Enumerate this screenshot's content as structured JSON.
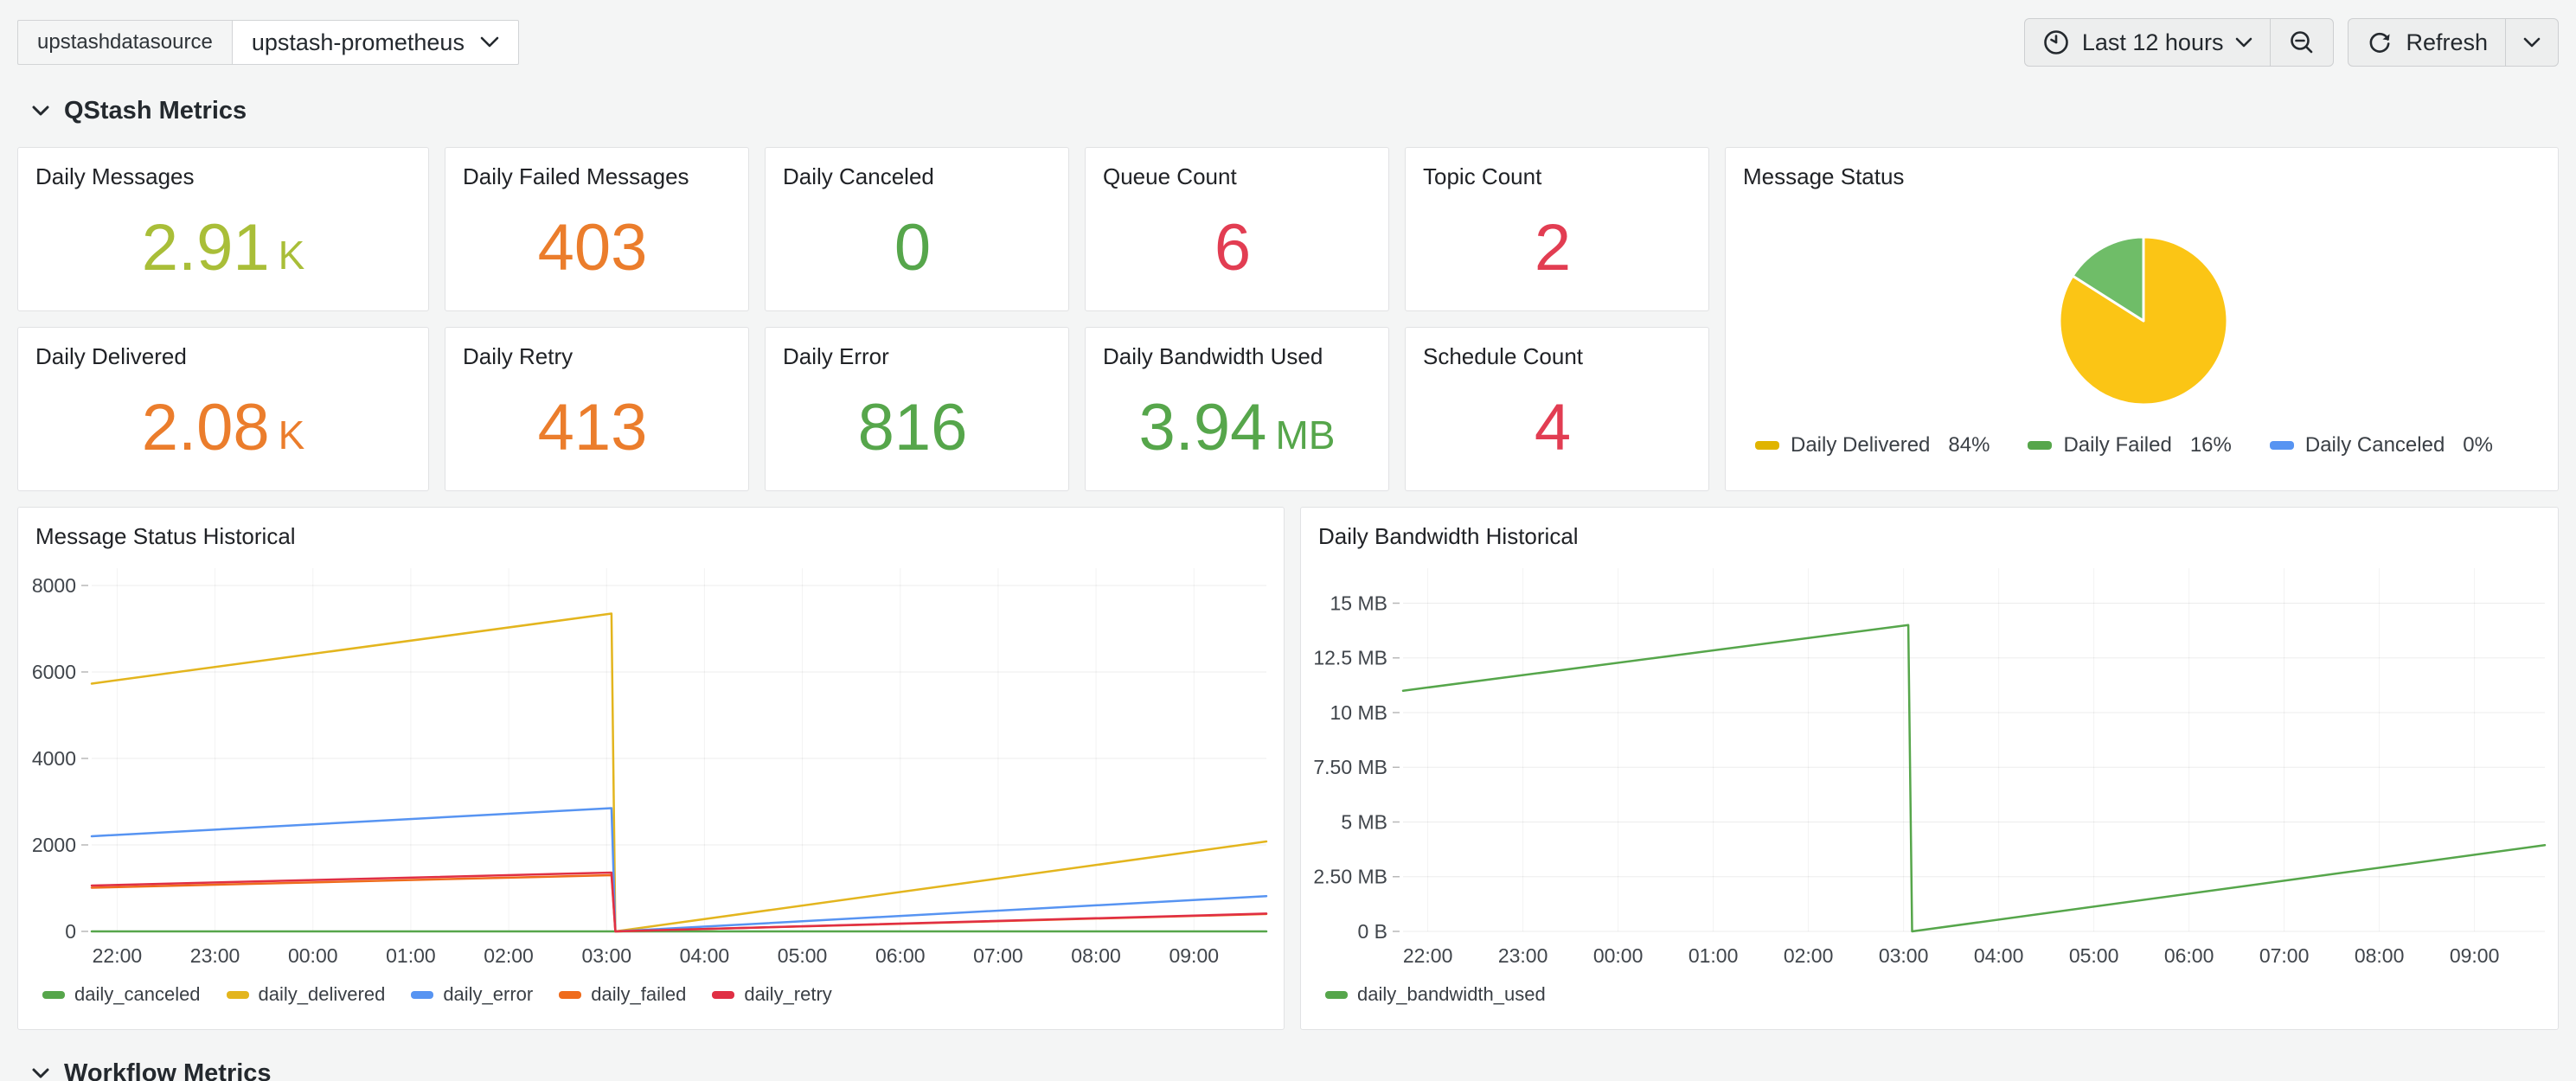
{
  "topbar": {
    "datasource_label": "upstashdatasource",
    "datasource_value": "upstash-prometheus",
    "time_range_label": "Last 12 hours",
    "refresh_label": "Refresh"
  },
  "sections": {
    "qstash_title": "QStash Metrics",
    "workflow_title": "Workflow Metrics"
  },
  "stat_panels": [
    {
      "title": "Daily Messages",
      "value": "2.91",
      "suffix": "K",
      "color": "#A9BE38"
    },
    {
      "title": "Daily Failed Messages",
      "value": "403",
      "suffix": "",
      "color": "#EB7D2C"
    },
    {
      "title": "Daily Canceled",
      "value": "0",
      "suffix": "",
      "color": "#56A64B"
    },
    {
      "title": "Queue Count",
      "value": "6",
      "suffix": "",
      "color": "#E23D52"
    },
    {
      "title": "Topic Count",
      "value": "2",
      "suffix": "",
      "color": "#E23D52"
    },
    {
      "title": "Daily Delivered",
      "value": "2.08",
      "suffix": "K",
      "color": "#EB7D2C"
    },
    {
      "title": "Daily Retry",
      "value": "413",
      "suffix": "",
      "color": "#EB7D2C"
    },
    {
      "title": "Daily Error",
      "value": "816",
      "suffix": "",
      "color": "#56A64B"
    },
    {
      "title": "Daily Bandwidth Used",
      "value": "3.94",
      "suffix": "MB",
      "color": "#56A64B"
    },
    {
      "title": "Schedule Count",
      "value": "4",
      "suffix": "",
      "color": "#E23D52"
    }
  ],
  "chart_data": [
    {
      "type": "pie",
      "title": "Message Status",
      "legend_position": "bottom",
      "slices": [
        {
          "label": "Daily Delivered",
          "pct": 84,
          "color": "#FBC515",
          "legend_color": "#E0B400"
        },
        {
          "label": "Daily Failed",
          "pct": 16,
          "color": "#6FBD68",
          "legend_color": "#56A64B"
        },
        {
          "label": "Daily Canceled",
          "pct": 0,
          "color": "#5794F2",
          "legend_color": "#5794F2"
        }
      ]
    },
    {
      "type": "line",
      "title": "Message Status Historical",
      "xlabel": "",
      "ylabel": "",
      "grid": true,
      "legend_position": "bottom",
      "ylim": [
        0,
        8400
      ],
      "xlim": [
        21.74,
        33.74
      ],
      "yticks": [
        {
          "v": 0,
          "label": "0"
        },
        {
          "v": 2000,
          "label": "2000"
        },
        {
          "v": 4000,
          "label": "4000"
        },
        {
          "v": 6000,
          "label": "6000"
        },
        {
          "v": 8000,
          "label": "8000"
        }
      ],
      "xticks": [
        {
          "v": 22,
          "label": "22:00"
        },
        {
          "v": 23,
          "label": "23:00"
        },
        {
          "v": 24,
          "label": "00:00"
        },
        {
          "v": 25,
          "label": "01:00"
        },
        {
          "v": 26,
          "label": "02:00"
        },
        {
          "v": 27,
          "label": "03:00"
        },
        {
          "v": 28,
          "label": "04:00"
        },
        {
          "v": 29,
          "label": "05:00"
        },
        {
          "v": 30,
          "label": "06:00"
        },
        {
          "v": 31,
          "label": "07:00"
        },
        {
          "v": 32,
          "label": "08:00"
        },
        {
          "v": 33,
          "label": "09:00"
        }
      ],
      "series": [
        {
          "name": "daily_canceled",
          "color": "#56A64B",
          "points": [
            [
              21.74,
              0
            ],
            [
              33.74,
              0
            ]
          ]
        },
        {
          "name": "daily_delivered",
          "color": "#E3B51E",
          "points": [
            [
              21.74,
              5730
            ],
            [
              27.05,
              7350
            ],
            [
              27.09,
              0
            ],
            [
              33.74,
              2080
            ]
          ]
        },
        {
          "name": "daily_error",
          "color": "#5794F2",
          "points": [
            [
              21.74,
              2200
            ],
            [
              27.05,
              2850
            ],
            [
              27.09,
              0
            ],
            [
              33.74,
              816
            ]
          ]
        },
        {
          "name": "daily_failed",
          "color": "#EF6B1C",
          "points": [
            [
              21.74,
              1010
            ],
            [
              27.05,
              1300
            ],
            [
              27.09,
              0
            ],
            [
              33.74,
              403
            ]
          ]
        },
        {
          "name": "daily_retry",
          "color": "#E02F44",
          "points": [
            [
              21.74,
              1060
            ],
            [
              27.05,
              1360
            ],
            [
              27.09,
              0
            ],
            [
              33.74,
              413
            ]
          ]
        }
      ]
    },
    {
      "type": "line",
      "title": "Daily Bandwidth Historical",
      "xlabel": "",
      "ylabel": "",
      "grid": true,
      "legend_position": "bottom",
      "ylim": [
        0,
        16.6
      ],
      "xlim": [
        21.74,
        33.74
      ],
      "yticks": [
        {
          "v": 0,
          "label": "0 B"
        },
        {
          "v": 2.5,
          "label": "2.50 MB"
        },
        {
          "v": 5,
          "label": "5 MB"
        },
        {
          "v": 7.5,
          "label": "7.50 MB"
        },
        {
          "v": 10,
          "label": "10 MB"
        },
        {
          "v": 12.5,
          "label": "12.5 MB"
        },
        {
          "v": 15,
          "label": "15 MB"
        }
      ],
      "xticks": [
        {
          "v": 22,
          "label": "22:00"
        },
        {
          "v": 23,
          "label": "23:00"
        },
        {
          "v": 24,
          "label": "00:00"
        },
        {
          "v": 25,
          "label": "01:00"
        },
        {
          "v": 26,
          "label": "02:00"
        },
        {
          "v": 27,
          "label": "03:00"
        },
        {
          "v": 28,
          "label": "04:00"
        },
        {
          "v": 29,
          "label": "05:00"
        },
        {
          "v": 30,
          "label": "06:00"
        },
        {
          "v": 31,
          "label": "07:00"
        },
        {
          "v": 32,
          "label": "08:00"
        },
        {
          "v": 33,
          "label": "09:00"
        }
      ],
      "series": [
        {
          "name": "daily_bandwidth_used",
          "color": "#56A64B",
          "points": [
            [
              21.74,
              11.0
            ],
            [
              27.05,
              14.0
            ],
            [
              27.09,
              0
            ],
            [
              33.74,
              3.94
            ]
          ]
        }
      ]
    }
  ]
}
